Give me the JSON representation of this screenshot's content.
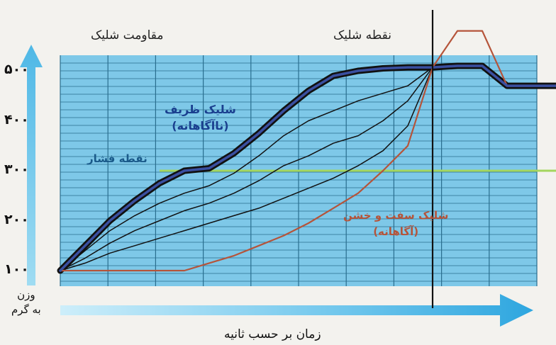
{
  "chart_data": {
    "type": "line",
    "title": "",
    "xlabel": "زمان بر حسب ثانیه",
    "ylabel": "وزن به گرم",
    "ylabel_lines": [
      "وزن",
      "به گرم"
    ],
    "yticks": [
      "۱۰۰",
      "۲۰۰",
      "۳۰۰",
      "۴۰۰",
      "۵۰۰"
    ],
    "ylim": [
      80,
      540
    ],
    "xlim": [
      0,
      100
    ],
    "grid": true,
    "annotations": {
      "resistance": "مقاومت شلیک",
      "shot_point": "نقطه شلیک",
      "pressure_point": "نقطه فشار",
      "soft_shot": "شلیک ظریف",
      "soft_shot_sub": "(ناآگاهانه)",
      "hard_shot": "شلیک سفت و خشن",
      "hard_shot_sub": "(آگاهانه)"
    },
    "reference_lines": {
      "pressure_point_y": 300,
      "shot_point_x": 75
    },
    "series": [
      {
        "key": "soft",
        "color": "#3a4fa0",
        "x": [
          0,
          5,
          10,
          15,
          20,
          25,
          30,
          35,
          40,
          45,
          50,
          55,
          60,
          65,
          70,
          75,
          80,
          85,
          90,
          95,
          100
        ],
        "y": [
          100,
          150,
          200,
          240,
          275,
          300,
          305,
          335,
          375,
          420,
          460,
          490,
          500,
          505,
          507,
          507,
          510,
          510,
          470,
          470,
          470
        ]
      },
      {
        "key": "mid1",
        "color": "#111111",
        "x": [
          0,
          5,
          10,
          15,
          20,
          25,
          30,
          35,
          40,
          45,
          50,
          55,
          60,
          65,
          70,
          75
        ],
        "y": [
          100,
          140,
          180,
          210,
          235,
          255,
          270,
          295,
          330,
          370,
          400,
          420,
          440,
          455,
          470,
          507
        ]
      },
      {
        "key": "mid2",
        "color": "#111111",
        "x": [
          0,
          5,
          10,
          15,
          20,
          25,
          30,
          35,
          40,
          45,
          50,
          55,
          60,
          65,
          70,
          75
        ],
        "y": [
          100,
          125,
          155,
          180,
          200,
          220,
          235,
          255,
          280,
          310,
          330,
          355,
          370,
          400,
          440,
          507
        ]
      },
      {
        "key": "mid3",
        "color": "#111111",
        "x": [
          0,
          5,
          10,
          15,
          20,
          25,
          30,
          35,
          40,
          45,
          50,
          55,
          60,
          65,
          70,
          75
        ],
        "y": [
          100,
          115,
          135,
          150,
          165,
          180,
          195,
          210,
          225,
          245,
          265,
          285,
          310,
          340,
          390,
          507
        ]
      },
      {
        "key": "hard",
        "color": "#b5543a",
        "x": [
          0,
          5,
          10,
          15,
          20,
          25,
          30,
          35,
          40,
          45,
          50,
          55,
          60,
          65,
          70,
          75,
          80,
          85,
          90,
          95,
          100
        ],
        "y": [
          100,
          100,
          100,
          100,
          100,
          100,
          115,
          130,
          150,
          170,
          195,
          225,
          255,
          300,
          350,
          507,
          580,
          580,
          470,
          470,
          470
        ]
      }
    ]
  }
}
